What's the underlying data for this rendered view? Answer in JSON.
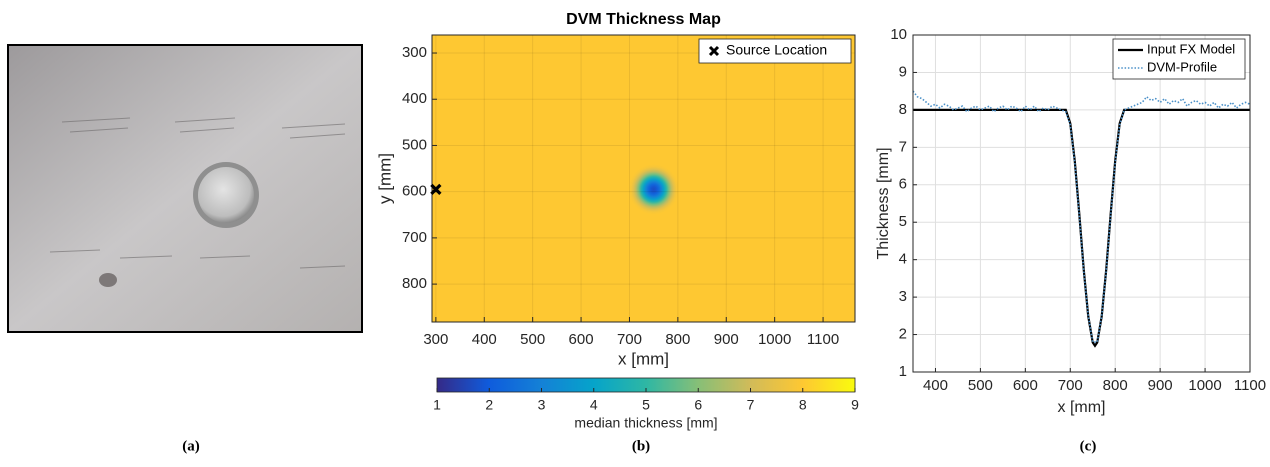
{
  "chart_data": [
    {
      "type": "image",
      "caption": "(a)"
    },
    {
      "type": "heatmap",
      "title": "DVM Thickness Map",
      "caption": "(b)",
      "x_label": "x [mm]",
      "y_label": "y [mm]",
      "xlim": [
        292,
        1166
      ],
      "xticks": [
        300,
        400,
        500,
        600,
        700,
        800,
        900,
        1000,
        1100
      ],
      "ylim": [
        261,
        882
      ],
      "yticks": [
        300,
        400,
        500,
        600,
        700,
        800
      ],
      "y_reversed": true,
      "grid": true,
      "background": 8,
      "dent": {
        "x": 750,
        "y": 595,
        "radius": 52,
        "min": 1.7
      },
      "series": [
        {
          "name": "Source Location",
          "color": "#000000",
          "marker": "x",
          "x": [
            300
          ],
          "values": [
            595
          ]
        }
      ],
      "legend": "upper right",
      "colorbar": {
        "label": "median thickness [mm]",
        "lim": [
          1,
          9
        ],
        "ticks": [
          1,
          2,
          3,
          4,
          5,
          6,
          7,
          8,
          9
        ],
        "colors": [
          "#352a87",
          "#0f5cdd",
          "#1481d6",
          "#06a4ca",
          "#2eb7a4",
          "#87bf77",
          "#d1bb59",
          "#fec832",
          "#f9fb0e"
        ]
      }
    },
    {
      "type": "line",
      "caption": "(c)",
      "x_label": "x [mm]",
      "y_label": "Thickness [mm]",
      "xlim": [
        350,
        1100
      ],
      "xticks": [
        400,
        500,
        600,
        700,
        800,
        900,
        1000,
        1100
      ],
      "ylim": [
        1,
        10
      ],
      "yticks": [
        1,
        2,
        3,
        4,
        5,
        6,
        7,
        8,
        9,
        10
      ],
      "grid": true,
      "legend": "upper right",
      "series": [
        {
          "name": "Input FX Model",
          "color": "#000000",
          "style": "solid",
          "x": [
            350,
            690,
            700,
            710,
            720,
            730,
            740,
            750,
            755,
            760,
            770,
            780,
            790,
            800,
            810,
            820,
            1100
          ],
          "values": [
            8,
            8,
            7.64,
            6.64,
            5.23,
            3.73,
            2.49,
            1.79,
            1.7,
            1.79,
            2.49,
            3.73,
            5.23,
            6.64,
            7.64,
            8,
            8
          ]
        },
        {
          "name": "DVM-Profile",
          "color": "#4a90c8",
          "style": "dotted",
          "x": [
            350,
            360,
            370,
            380,
            390,
            400,
            410,
            420,
            430,
            440,
            450,
            460,
            470,
            480,
            490,
            500,
            510,
            520,
            530,
            540,
            550,
            560,
            570,
            580,
            590,
            600,
            610,
            620,
            630,
            640,
            650,
            660,
            670,
            680,
            690,
            700,
            710,
            720,
            730,
            740,
            750,
            760,
            770,
            780,
            790,
            800,
            810,
            820,
            830,
            840,
            850,
            860,
            870,
            880,
            890,
            900,
            910,
            920,
            930,
            940,
            950,
            960,
            970,
            980,
            990,
            1000,
            1010,
            1020,
            1030,
            1040,
            1050,
            1060,
            1070,
            1080,
            1090,
            1100
          ],
          "values": [
            8.5,
            8.35,
            8.3,
            8.2,
            8.1,
            8.15,
            8.05,
            8.15,
            8.1,
            8.0,
            8.05,
            8.1,
            7.95,
            8.05,
            8.1,
            8.0,
            8.05,
            8.1,
            7.95,
            8.05,
            8.1,
            8.0,
            8.1,
            8.05,
            7.95,
            8.1,
            8.0,
            8.1,
            7.95,
            8.05,
            8.0,
            8.1,
            8.05,
            8.0,
            7.95,
            7.6,
            6.6,
            5.2,
            3.7,
            2.5,
            1.8,
            1.8,
            2.5,
            3.7,
            5.2,
            6.6,
            7.6,
            8.0,
            8.05,
            8.1,
            8.15,
            8.2,
            8.35,
            8.25,
            8.3,
            8.2,
            8.3,
            8.15,
            8.25,
            8.2,
            8.3,
            8.1,
            8.2,
            8.25,
            8.15,
            8.2,
            8.1,
            8.2,
            8.05,
            8.15,
            8.1,
            8.2,
            8.05,
            8.15,
            8.2,
            8.15
          ]
        }
      ]
    }
  ]
}
